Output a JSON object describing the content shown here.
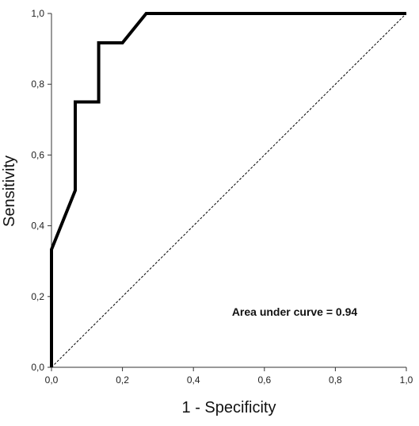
{
  "chart_data": {
    "type": "line",
    "title": "",
    "xlabel": "1 - Specificity",
    "ylabel": "Sensitivity",
    "xlim": [
      0,
      1
    ],
    "ylim": [
      0,
      1
    ],
    "x_ticks": [
      "0,0",
      "0,2",
      "0,4",
      "0,6",
      "0,8",
      "1,0"
    ],
    "y_ticks": [
      "0,0",
      "0,2",
      "0,4",
      "0,6",
      "0,8",
      "1,0"
    ],
    "grid": false,
    "series": [
      {
        "style": "solid-thick",
        "color": "#000000",
        "x": [
          0.0,
          0.0,
          0.067,
          0.067,
          0.133,
          0.133,
          0.2,
          0.267,
          1.0
        ],
        "y": [
          0.0,
          0.333,
          0.5,
          0.75,
          0.75,
          0.917,
          0.917,
          1.0,
          1.0
        ]
      },
      {
        "style": "dashed-reference",
        "color": "#000000",
        "x": [
          0,
          1
        ],
        "y": [
          0,
          1
        ]
      }
    ],
    "annotation": "Area under curve = 0.94"
  }
}
